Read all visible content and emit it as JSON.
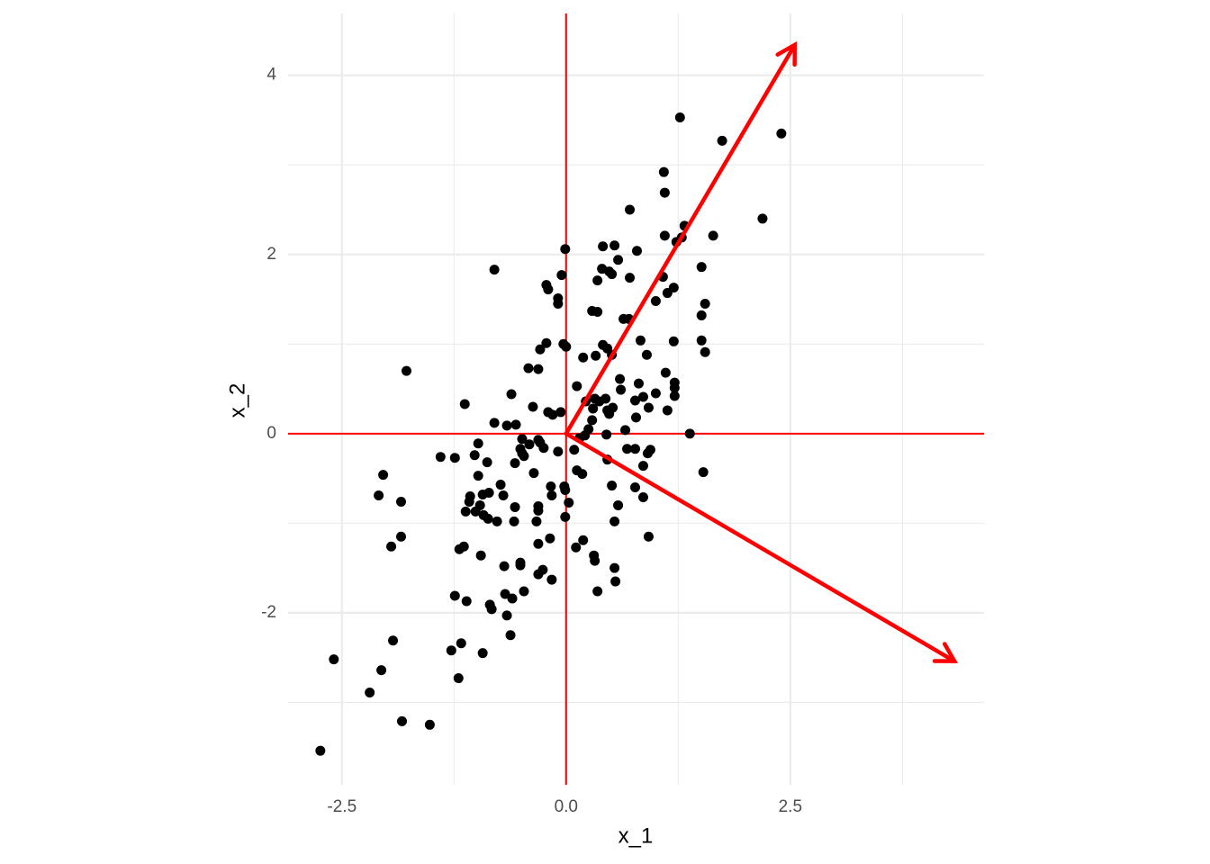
{
  "chart_data": {
    "type": "scatter",
    "x_label": "x_1",
    "y_label": "x_2",
    "xlim": [
      -3.1,
      4.66
    ],
    "ylim": [
      -3.92,
      4.69
    ],
    "xticks": [
      -2.5,
      {
        "value": 0,
        "label": "0.0"
      },
      2.5
    ],
    "yticks": [
      -2,
      0,
      2,
      4
    ],
    "x_minor_grid": [
      -1.25,
      1.25,
      3.75
    ],
    "y_minor_grid": [
      -3,
      -1,
      1,
      3
    ],
    "grid": true,
    "color": "#000000",
    "vline": 0,
    "hline": 0,
    "line_color": "#ff0000",
    "arrows": [
      {
        "x": [
          0,
          2.55
        ],
        "y": [
          0,
          4.34
        ]
      },
      {
        "x": [
          0,
          4.33
        ],
        "y": [
          0,
          -2.54
        ]
      }
    ],
    "x": [
      1.27,
      1.74,
      2.4,
      1.09,
      1.1,
      0.71,
      2.19,
      1.32,
      1.1,
      1.29,
      1.64,
      1.23,
      -0.01,
      0.41,
      0.54,
      0.79,
      0.58,
      1.51,
      -0.8,
      0.4,
      0.48,
      0.51,
      -0.05,
      0.71,
      1.08,
      0.35,
      -0.22,
      -0.2,
      1.2,
      1.13,
      -0.09,
      -0.09,
      1.0,
      1.55,
      0.29,
      0.35,
      1.51,
      0.64,
      0.7,
      -0.03,
      -0.22,
      0.0,
      -0.29,
      0.41,
      0.46,
      0.83,
      1.2,
      1.51,
      0.51,
      0.33,
      0.19,
      0.9,
      1.55,
      -0.42,
      -0.31,
      -1.78,
      1.11,
      0.6,
      0.81,
      1.21,
      1.21,
      0.12,
      0.61,
      -0.61,
      1.0,
      1.21,
      0.44,
      0.32,
      0.37,
      0.22,
      0.77,
      0.86,
      -1.13,
      -0.37,
      1.13,
      0.92,
      0.52,
      0.46,
      0.3,
      -0.2,
      -0.06,
      -0.15,
      0.48,
      0.78,
      0.29,
      -0.8,
      -0.66,
      -0.56,
      0.25,
      0.66,
      1.38,
      0.21,
      0.15,
      0.45,
      -0.49,
      -0.31,
      -0.29,
      -0.98,
      -0.41,
      -0.51,
      -0.25,
      -0.09,
      0.09,
      0.68,
      0.77,
      0.94,
      0.91,
      -0.49,
      -0.47,
      -1.4,
      -1.24,
      -1.02,
      0.46,
      -0.88,
      -0.57,
      0.86,
      1.53,
      -2.04,
      -0.36,
      -0.98,
      0.12,
      0.18,
      -0.73,
      0.77,
      0.51,
      -0.02,
      -0.01,
      -0.17,
      -2.09,
      -0.86,
      -0.93,
      -0.7,
      -1.07,
      -0.16,
      0.86,
      -1.08,
      -1.84,
      0.03,
      0.58,
      -0.57,
      -0.31,
      -0.96,
      -1.12,
      -1.01,
      -0.92,
      -0.87,
      -0.31,
      -0.01,
      -0.77,
      -0.58,
      -0.33,
      0.54,
      -1.84,
      0.92,
      -0.18,
      0.19,
      -1.95,
      -0.31,
      0.11,
      -1.14,
      -1.19,
      -0.95,
      0.31,
      0.32,
      -0.51,
      -0.51,
      -0.69,
      0.54,
      -0.26,
      -0.31,
      -0.16,
      0.55,
      -0.47,
      0.35,
      -1.24,
      -0.68,
      -0.6,
      -1.11,
      -0.85,
      -0.83,
      -0.66,
      -0.62,
      -1.93,
      -1.17,
      -1.28,
      -2.59,
      -0.93,
      -2.06,
      -1.2,
      -2.19,
      -1.83,
      -1.52,
      -2.74
    ],
    "values": [
      3.53,
      3.27,
      3.35,
      2.92,
      2.69,
      2.5,
      2.4,
      2.32,
      2.21,
      2.19,
      2.21,
      2.14,
      2.06,
      2.09,
      2.1,
      2.04,
      1.94,
      1.86,
      1.83,
      1.84,
      1.81,
      1.78,
      1.77,
      1.74,
      1.75,
      1.71,
      1.66,
      1.61,
      1.63,
      1.57,
      1.51,
      1.45,
      1.48,
      1.45,
      1.37,
      1.36,
      1.32,
      1.28,
      1.28,
      1.0,
      1.01,
      0.97,
      0.94,
      0.99,
      0.95,
      1.04,
      1.03,
      1.04,
      0.88,
      0.87,
      0.85,
      0.88,
      0.91,
      0.73,
      0.72,
      0.7,
      0.68,
      0.61,
      0.56,
      0.57,
      0.51,
      0.53,
      0.49,
      0.44,
      0.45,
      0.42,
      0.39,
      0.39,
      0.36,
      0.36,
      0.37,
      0.41,
      0.33,
      0.3,
      0.26,
      0.29,
      0.29,
      0.26,
      0.28,
      0.24,
      0.24,
      0.21,
      0.22,
      0.18,
      0.15,
      0.12,
      0.09,
      0.1,
      0.05,
      0.04,
      0.0,
      -0.02,
      -0.05,
      -0.01,
      -0.06,
      -0.07,
      -0.1,
      -0.11,
      -0.12,
      -0.17,
      -0.16,
      -0.2,
      -0.18,
      -0.17,
      -0.17,
      -0.18,
      -0.22,
      -0.22,
      -0.25,
      -0.26,
      -0.27,
      -0.24,
      -0.29,
      -0.32,
      -0.33,
      -0.36,
      -0.43,
      -0.46,
      -0.44,
      -0.47,
      -0.41,
      -0.45,
      -0.57,
      -0.6,
      -0.58,
      -0.59,
      -0.63,
      -0.59,
      -0.69,
      -0.66,
      -0.68,
      -0.69,
      -0.7,
      -0.69,
      -0.71,
      -0.76,
      -0.76,
      -0.77,
      -0.8,
      -0.82,
      -0.81,
      -0.8,
      -0.87,
      -0.87,
      -0.91,
      -0.95,
      -0.86,
      -0.93,
      -0.98,
      -0.98,
      -0.98,
      -0.98,
      -1.15,
      -1.15,
      -1.17,
      -1.19,
      -1.26,
      -1.23,
      -1.27,
      -1.26,
      -1.29,
      -1.36,
      -1.36,
      -1.42,
      -1.44,
      -1.47,
      -1.48,
      -1.5,
      -1.52,
      -1.57,
      -1.63,
      -1.65,
      -1.76,
      -1.76,
      -1.81,
      -1.79,
      -1.84,
      -1.87,
      -1.91,
      -1.96,
      -2.03,
      -2.25,
      -2.31,
      -2.34,
      -2.42,
      -2.52,
      -2.45,
      -2.64,
      -2.73,
      -2.89,
      -3.21,
      -3.25,
      -3.54
    ]
  }
}
